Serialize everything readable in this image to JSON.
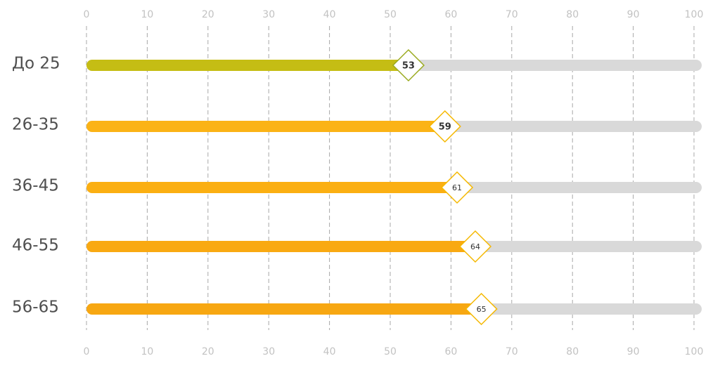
{
  "chart_data": {
    "type": "bar",
    "orientation": "horizontal",
    "categories": [
      "До 25",
      "26-35",
      "36-45",
      "46-55",
      "56-65"
    ],
    "values": [
      53,
      59,
      61,
      64,
      65
    ],
    "value_labels": [
      "53",
      "59",
      "61",
      "64",
      "65"
    ],
    "xlim": [
      0,
      100
    ],
    "xticks": [
      0,
      10,
      20,
      30,
      40,
      50,
      60,
      70,
      80,
      90,
      100
    ],
    "xtick_labels": [
      "0",
      "10",
      "20",
      "30",
      "40",
      "50",
      "60",
      "70",
      "80",
      "90",
      "100"
    ],
    "axis_labels_position": "top and bottom",
    "grid": "vertical dashed",
    "legend": "none",
    "colors": {
      "bars": [
        "#c5bd14",
        "#fbb316",
        "#fbaf12",
        "#f9a912",
        "#f7a712"
      ],
      "track": "#d9d9d9",
      "marker_stroke": [
        "#9aaa1e",
        "#f5b800",
        "#f5b800",
        "#f5b800",
        "#f5b800"
      ],
      "gridline": "#a8a8a8"
    }
  }
}
